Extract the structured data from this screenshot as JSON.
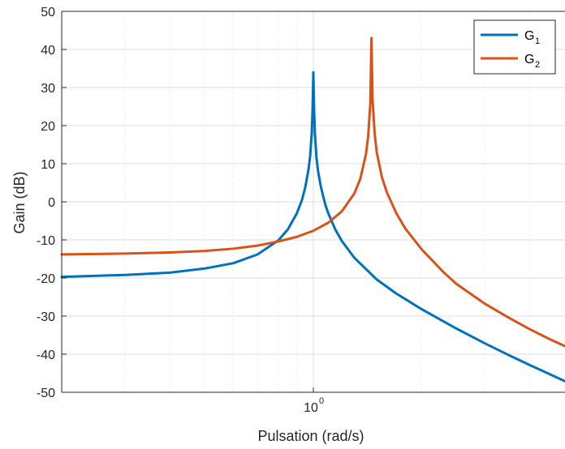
{
  "chart_data": {
    "type": "line",
    "xlabel": "Pulsation  (rad/s)",
    "ylabel": "Gain (dB)",
    "x_scale": "log",
    "xlim": [
      0.2,
      5.0
    ],
    "ylim": [
      -50,
      50
    ],
    "y_ticks": [
      50,
      40,
      30,
      20,
      10,
      0,
      -10,
      -20,
      -30,
      -40,
      -50
    ],
    "x_tick_labels": [
      {
        "base": "10",
        "exp": "0",
        "value": 1
      }
    ],
    "grid": true,
    "legend_position": "top-right",
    "series": [
      {
        "name": "G",
        "name_sub": "1",
        "color": "#0072bd",
        "x": [
          0.2,
          0.3,
          0.4,
          0.5,
          0.6,
          0.7,
          0.8,
          0.85,
          0.9,
          0.93,
          0.95,
          0.97,
          0.98,
          0.99,
          0.995,
          1.0,
          1.005,
          1.01,
          1.02,
          1.03,
          1.05,
          1.08,
          1.1,
          1.15,
          1.2,
          1.3,
          1.5,
          1.7,
          2.0,
          2.5,
          3.0,
          3.5,
          4.0,
          4.5,
          5.0
        ],
        "y": [
          -19.7,
          -19.2,
          -18.6,
          -17.5,
          -16.1,
          -13.8,
          -10.1,
          -7.2,
          -3.0,
          0.5,
          3.9,
          8.6,
          12.1,
          18.1,
          24.1,
          34.0,
          23.9,
          17.9,
          11.7,
          8.2,
          3.8,
          -0.8,
          -3.0,
          -7.2,
          -10.3,
          -14.7,
          -20.4,
          -24.1,
          -28.2,
          -33.3,
          -37.2,
          -40.3,
          -42.9,
          -45.1,
          -47.1
        ]
      },
      {
        "name": "G",
        "name_sub": "2",
        "color": "#d95319",
        "x": [
          0.2,
          0.3,
          0.4,
          0.5,
          0.6,
          0.7,
          0.8,
          0.9,
          1.0,
          1.1,
          1.2,
          1.3,
          1.35,
          1.4,
          1.42,
          1.44,
          1.45,
          1.46,
          1.48,
          1.5,
          1.55,
          1.6,
          1.7,
          1.8,
          2.0,
          2.3,
          2.5,
          3.0,
          3.5,
          4.0,
          4.5,
          5.0
        ],
        "y": [
          -13.8,
          -13.6,
          -13.3,
          -12.9,
          -12.3,
          -11.5,
          -10.4,
          -9.2,
          -7.6,
          -5.5,
          -2.5,
          2.2,
          6.0,
          12.5,
          17.2,
          26.0,
          43.0,
          27.0,
          18.0,
          13.0,
          6.5,
          2.5,
          -3.0,
          -7.0,
          -12.5,
          -18.5,
          -21.6,
          -26.8,
          -30.5,
          -33.5,
          -35.9,
          -37.9
        ]
      }
    ]
  }
}
